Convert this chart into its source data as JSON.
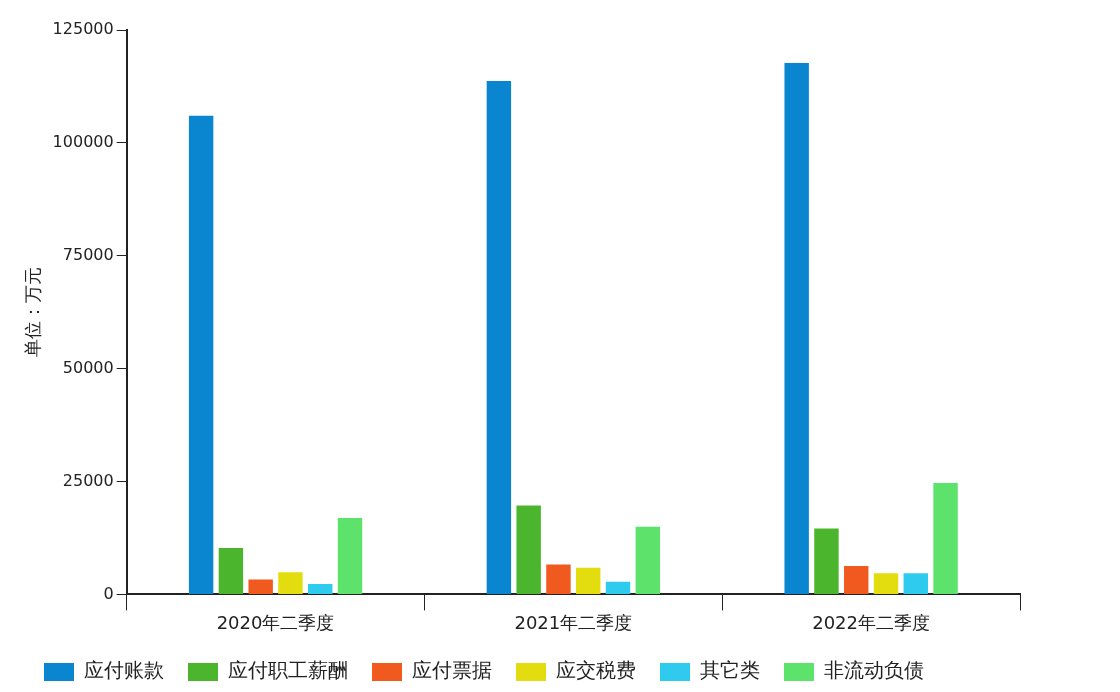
{
  "chart_data": {
    "type": "bar",
    "ylabel": "单位：万元",
    "categories": [
      "2020年二季度",
      "2021年二季度",
      "2022年二季度"
    ],
    "series": [
      {
        "name": "应付账款",
        "color": "#0a85cf",
        "values": [
          106000,
          113700,
          117700
        ]
      },
      {
        "name": "应付职工薪酬",
        "color": "#4cb52e",
        "values": [
          10300,
          19700,
          14600
        ]
      },
      {
        "name": "应付票据",
        "color": "#f05a1e",
        "values": [
          3300,
          6600,
          6300
        ]
      },
      {
        "name": "应交税费",
        "color": "#e3dc0e",
        "values": [
          4900,
          5900,
          4700
        ]
      },
      {
        "name": "其它类",
        "color": "#2ecbee",
        "values": [
          2300,
          2800,
          4700
        ]
      },
      {
        "name": "非流动负债",
        "color": "#5de36c",
        "values": [
          16900,
          15000,
          24700
        ]
      }
    ],
    "ylim": [
      0,
      125000
    ],
    "yticks": [
      0,
      25000,
      50000,
      75000,
      100000,
      125000
    ],
    "grid": false,
    "legend": "bottom"
  }
}
